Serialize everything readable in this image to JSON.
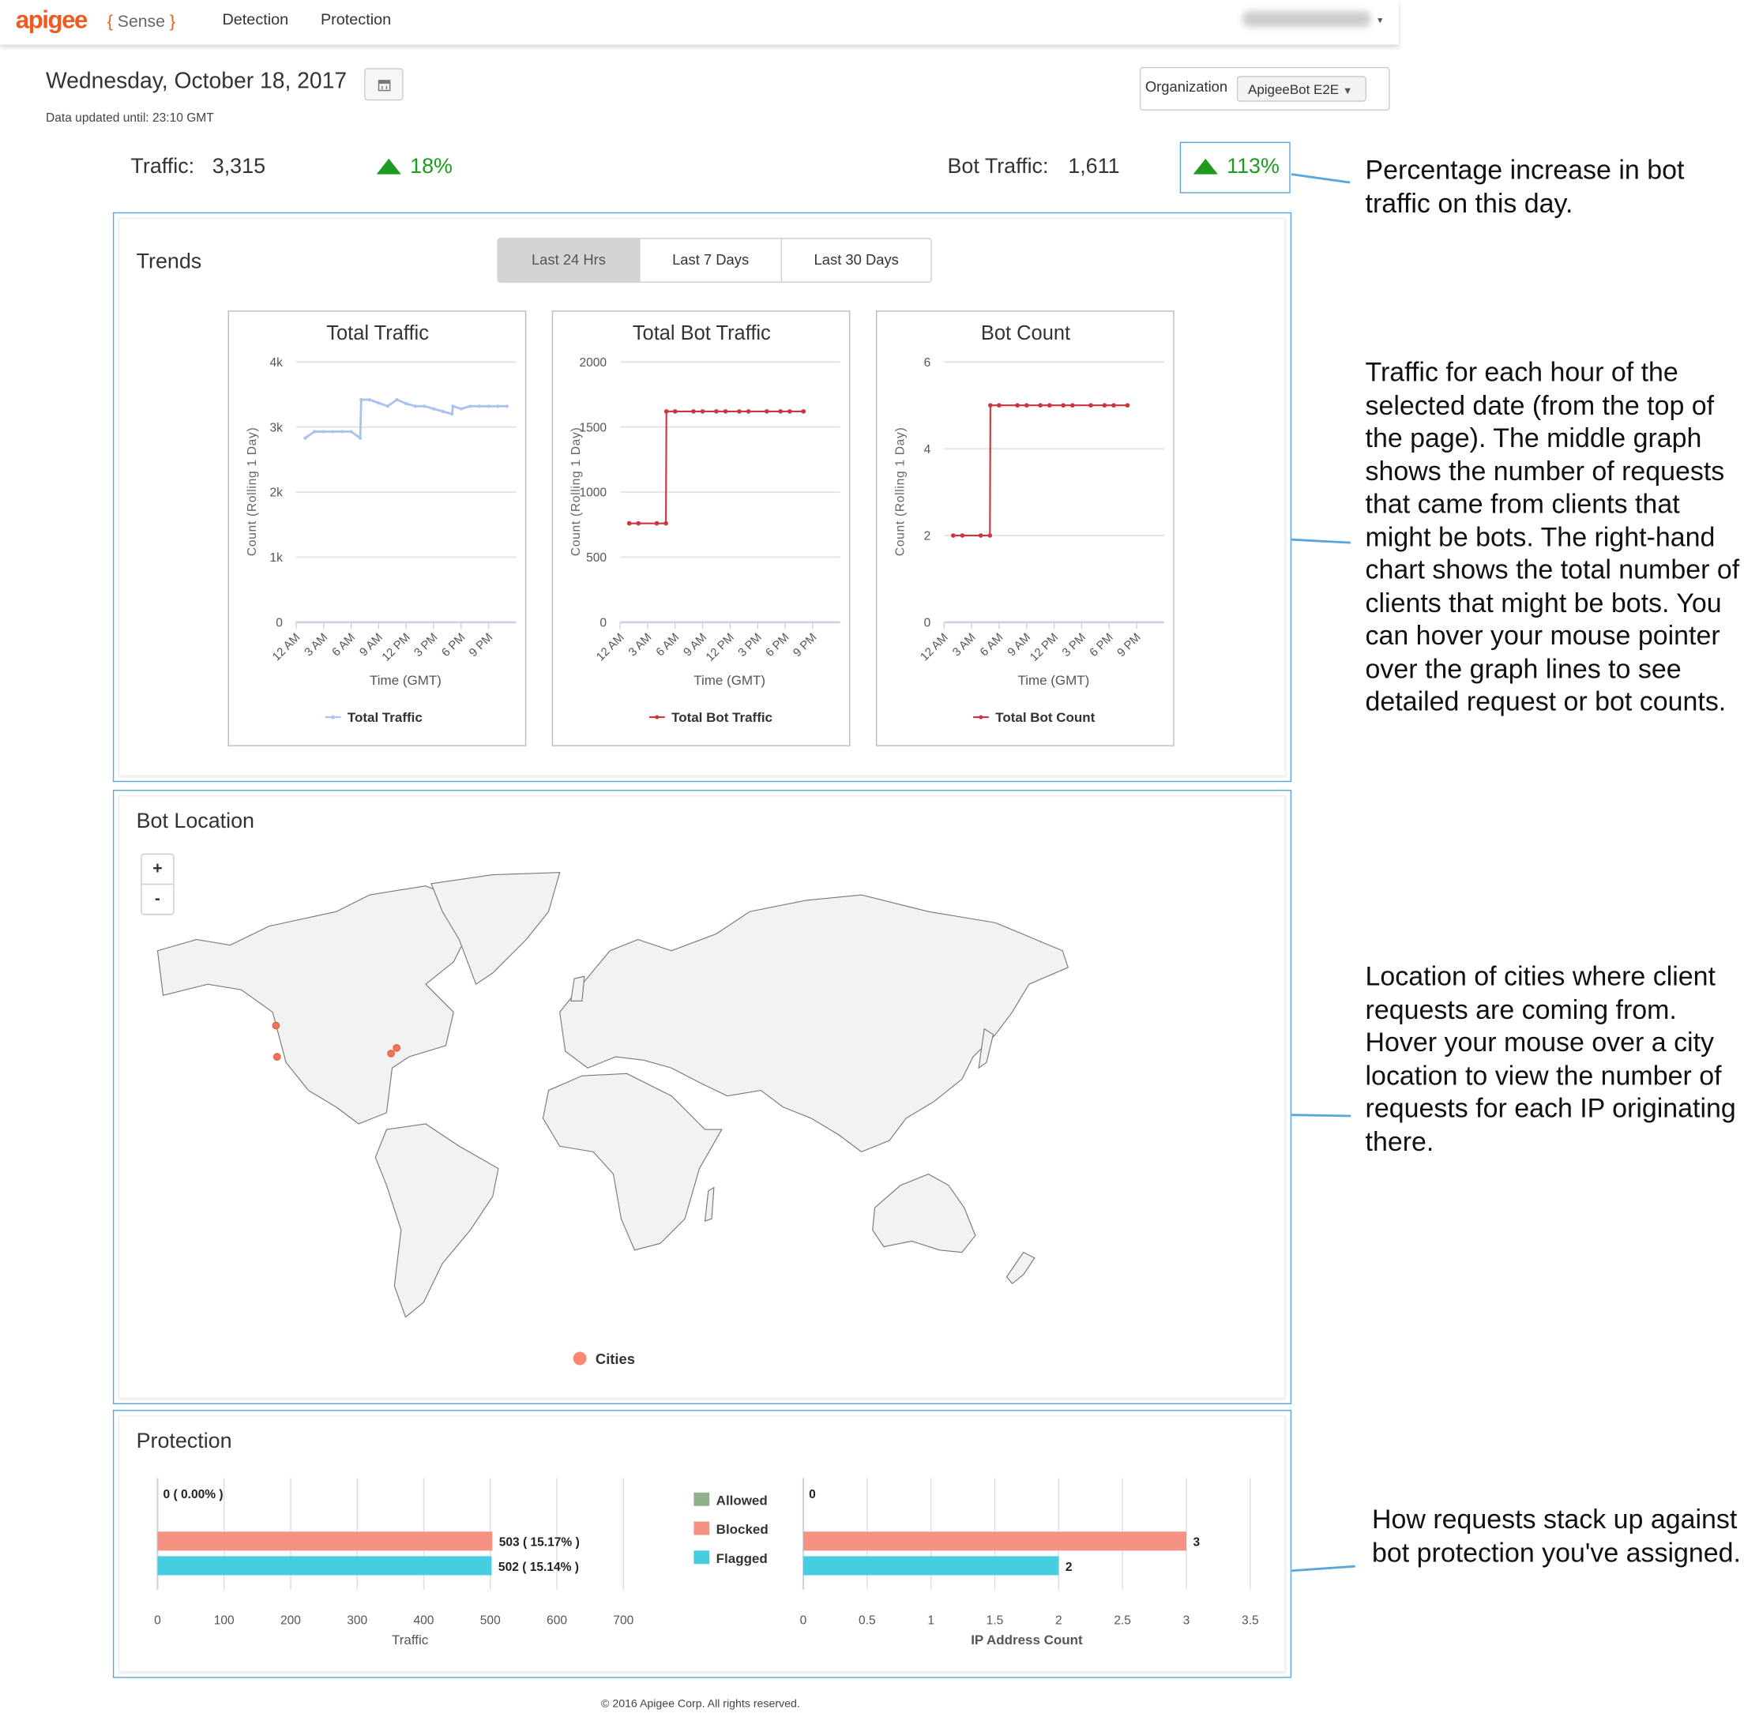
{
  "nav": {
    "logo": "apigee",
    "product": "Sense",
    "links": [
      "Detection",
      "Protection"
    ],
    "user_caret": "▾"
  },
  "header": {
    "date": "Wednesday, October 18, 2017",
    "calendar_icon": "calendar-icon",
    "data_updated": "Data updated until: 23:10 GMT",
    "organization_label": "Organization",
    "organization_value": "ApigeeBot E2E"
  },
  "stats": {
    "traffic_label": "Traffic:",
    "traffic_value": "3,315",
    "traffic_change": "18%",
    "bot_traffic_label": "Bot Traffic:",
    "bot_traffic_value": "1,611",
    "bot_traffic_change": "113%",
    "up_color": "#1e9a1e"
  },
  "trends": {
    "title": "Trends",
    "tabs": [
      {
        "label": "Last 24 Hrs",
        "active": true
      },
      {
        "label": "Last 7 Days",
        "active": false
      },
      {
        "label": "Last 30 Days",
        "active": false
      }
    ]
  },
  "chart_data": [
    {
      "type": "line",
      "title": "Total Traffic",
      "xlabel": "Time (GMT)",
      "ylabel": "Count (Rolling 1 Day)",
      "xticks": [
        "12 AM",
        "3 AM",
        "6 AM",
        "9 AM",
        "12 PM",
        "3 PM",
        "6 PM",
        "9 PM"
      ],
      "yticks": [
        "0",
        "1k",
        "2k",
        "3k",
        "4k"
      ],
      "ylim": [
        0,
        4000
      ],
      "xlim_hours": [
        0,
        24
      ],
      "color": "#a9c4ec",
      "legend": "Total Traffic",
      "x_hours": [
        1,
        2,
        3,
        4,
        5,
        6,
        7,
        7.1,
        8,
        9,
        10,
        11,
        12,
        13,
        14,
        15,
        16,
        17,
        17.1,
        18,
        19,
        20,
        21,
        22,
        23
      ],
      "values": [
        2830,
        2930,
        2930,
        2930,
        2930,
        2930,
        2830,
        3420,
        3420,
        3370,
        3320,
        3420,
        3360,
        3320,
        3320,
        3280,
        3240,
        3200,
        3320,
        3280,
        3320,
        3320,
        3320,
        3320,
        3320
      ]
    },
    {
      "type": "line",
      "title": "Total Bot Traffic",
      "xlabel": "Time (GMT)",
      "ylabel": "Count (Rolling 1 Day)",
      "xticks": [
        "12 AM",
        "3 AM",
        "6 AM",
        "9 AM",
        "12 PM",
        "3 PM",
        "6 PM",
        "9 PM"
      ],
      "yticks": [
        "0",
        "500",
        "1000",
        "1500",
        "2000"
      ],
      "ylim": [
        0,
        2000
      ],
      "xlim_hours": [
        0,
        24
      ],
      "color": "#c9363e",
      "legend": "Total Bot Traffic",
      "x_hours": [
        1,
        2,
        4,
        5,
        5.05,
        6,
        8,
        9,
        10.5,
        11.5,
        13,
        14,
        16,
        17.5,
        18.5,
        20
      ],
      "values": [
        760,
        760,
        760,
        760,
        1620,
        1620,
        1620,
        1620,
        1620,
        1620,
        1620,
        1620,
        1620,
        1620,
        1620,
        1620
      ]
    },
    {
      "type": "line",
      "title": "Bot Count",
      "xlabel": "Time (GMT)",
      "ylabel": "Count (Rolling 1 Day)",
      "xticks": [
        "12 AM",
        "3 AM",
        "6 AM",
        "9 AM",
        "12 PM",
        "3 PM",
        "6 PM",
        "9 PM"
      ],
      "yticks": [
        "0",
        "2",
        "4",
        "6"
      ],
      "ylim": [
        0,
        6
      ],
      "xlim_hours": [
        0,
        24
      ],
      "color": "#c9363e",
      "legend": "Total Bot Count",
      "x_hours": [
        1,
        2,
        4,
        5,
        5.05,
        6,
        8,
        9,
        10.5,
        11.5,
        13,
        14,
        16,
        17.5,
        18.5,
        20
      ],
      "values": [
        2,
        2,
        2,
        2,
        5,
        5,
        5,
        5,
        5,
        5,
        5,
        5,
        5,
        5,
        5,
        5
      ]
    },
    {
      "type": "bar",
      "orientation": "horizontal",
      "xlabel": "Traffic",
      "xticks": [
        "0",
        "100",
        "200",
        "300",
        "400",
        "500",
        "600",
        "700"
      ],
      "xlim": [
        0,
        700
      ],
      "categories": [
        "Allowed",
        "Blocked",
        "Flagged"
      ],
      "values": [
        0,
        503,
        502
      ],
      "labels": [
        "0 ( 0.00% )",
        "503 ( 15.17% )",
        "502 ( 15.14% )"
      ],
      "colors": [
        "#8fb08b",
        "#f59282",
        "#45cde0"
      ]
    },
    {
      "type": "bar",
      "orientation": "horizontal",
      "xlabel": "IP Address Count",
      "xticks": [
        "0",
        "0.5",
        "1",
        "1.5",
        "2",
        "2.5",
        "3",
        "3.5"
      ],
      "xlim": [
        0,
        3.5
      ],
      "categories": [
        "Allowed",
        "Blocked",
        "Flagged"
      ],
      "values": [
        0,
        3,
        2
      ],
      "labels": [
        "0",
        "3",
        "2"
      ],
      "colors": [
        "#8fb08b",
        "#f59282",
        "#45cde0"
      ]
    }
  ],
  "bot_location": {
    "title": "Bot Location",
    "zoom_in": "+",
    "zoom_out": "-",
    "legend": "Cities",
    "city_color": "#f7735a"
  },
  "protection": {
    "title": "Protection",
    "legend": [
      "Allowed",
      "Blocked",
      "Flagged"
    ]
  },
  "annotations": [
    "Percentage increase in bot traffic on this day.",
    "Traffic for each hour of the selected date (from the top of the page). The middle graph shows the number of requests that came from clients that might be bots. The right-hand chart shows the total number of clients that might be bots. You can hover your mouse pointer over the graph lines to see detailed request or bot counts.",
    "Location of cities where client requests are coming from. Hover your mouse over a city location to view the number of requests for each IP originating there.",
    "How requests stack up against bot protection you've assigned."
  ],
  "footer": "© 2016 Apigee Corp. All rights reserved."
}
